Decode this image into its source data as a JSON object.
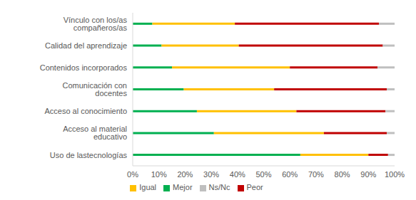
{
  "chart_data": {
    "type": "bar",
    "orientation": "horizontal",
    "stacked": true,
    "grid": false,
    "legend": "bottom",
    "categories": [
      "Vínculo con los/as compañeros/as",
      "Calidad del aprendizaje",
      "Contenidos incorporados",
      "Comunicación con docentes",
      "Acceso al conocimiento",
      "Acceso al material educativo",
      "Uso de lastecnologías"
    ],
    "series": [
      {
        "name": "Mejor",
        "color": "#00b050",
        "values": [
          7.5,
          11,
          15,
          19.5,
          24.5,
          31,
          64
        ]
      },
      {
        "name": "Igual",
        "color": "#ffc000",
        "values": [
          31.5,
          29.5,
          45,
          34.5,
          38,
          42,
          26
        ]
      },
      {
        "name": "Peor",
        "color": "#c00000",
        "values": [
          55,
          55,
          33.5,
          43,
          34,
          24,
          7.5
        ]
      },
      {
        "name": "Ns/Nc",
        "color": "#bfbfbf",
        "values": [
          6,
          4.5,
          6.5,
          3,
          3.5,
          3,
          2.5
        ]
      }
    ],
    "xlim": [
      0,
      100
    ],
    "xticks": [
      {
        "value": 0,
        "label": "0%"
      },
      {
        "value": 10,
        "label": "10%"
      },
      {
        "value": 20,
        "label": "20%"
      },
      {
        "value": 30,
        "label": "30%"
      },
      {
        "value": 40,
        "label": "40%"
      },
      {
        "value": 50,
        "label": "50%"
      },
      {
        "value": 60,
        "label": "60%"
      },
      {
        "value": 70,
        "label": "70%"
      },
      {
        "value": 80,
        "label": "80%"
      },
      {
        "value": 90,
        "label": "90%"
      },
      {
        "value": 100,
        "label": "100%"
      }
    ]
  }
}
